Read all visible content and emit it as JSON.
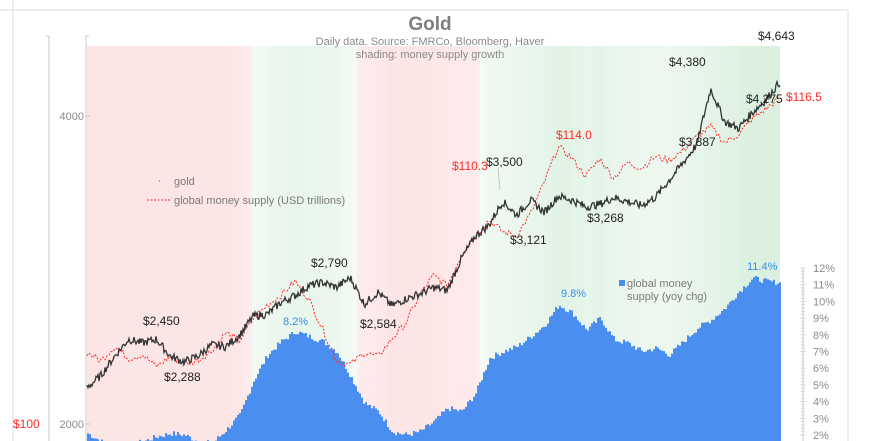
{
  "chart_data": {
    "type": "line",
    "title": "Gold",
    "subtitle_lines": [
      "Daily data.  Source: FMRCo, Bloomberg, Haver",
      "shading: money supply growth"
    ],
    "left_axis": {
      "scale": "log",
      "ticks": [
        {
          "label": "4000",
          "value": 4000
        },
        {
          "label": "2000",
          "value": 2000
        }
      ],
      "ylim": [
        2000,
        4700
      ]
    },
    "money_axis": {
      "ticks": [
        {
          "label": "$100",
          "value": 100
        }
      ],
      "ylim": [
        100,
        119
      ]
    },
    "right_axis": {
      "ticks": [
        "12%",
        "11%",
        "10%",
        "9%",
        "8%",
        "7%",
        "6%",
        "5%",
        "4%",
        "3%",
        "2%"
      ],
      "ylim": [
        1.8,
        12.3
      ],
      "unit": "%"
    },
    "legend": {
      "gold": "gold",
      "money_supply": "global money supply (USD trillions)",
      "money_growth": "global money supply (yoy chg)"
    },
    "series": [
      {
        "name": "gold",
        "color": "#333333",
        "x": [
          0,
          2,
          4,
          6,
          8,
          10,
          12,
          14,
          16,
          18,
          20,
          22,
          24,
          26,
          28,
          30,
          32,
          34,
          36,
          38,
          40,
          42,
          44,
          46,
          48,
          50,
          52,
          54,
          56,
          58,
          60,
          62,
          64,
          66,
          68,
          70,
          72,
          74,
          76,
          78,
          80,
          82,
          84,
          86,
          88,
          90,
          92,
          94,
          96,
          98,
          100
        ],
        "values": [
          2170,
          2230,
          2330,
          2420,
          2400,
          2420,
          2330,
          2300,
          2330,
          2390,
          2380,
          2440,
          2550,
          2560,
          2630,
          2670,
          2730,
          2750,
          2720,
          2780,
          2620,
          2690,
          2610,
          2650,
          2680,
          2720,
          2700,
          2900,
          3050,
          3130,
          3300,
          3200,
          3310,
          3220,
          3340,
          3310,
          3260,
          3280,
          3330,
          3300,
          3270,
          3330,
          3460,
          3600,
          3750,
          4250,
          3950,
          3890,
          4030,
          4150,
          4320
        ]
      },
      {
        "name": "global money supply (USD trillions)",
        "color": "#ff2a2a",
        "x": [
          0,
          2,
          4,
          6,
          8,
          10,
          12,
          14,
          16,
          18,
          20,
          22,
          24,
          26,
          28,
          30,
          32,
          34,
          36,
          38,
          40,
          42,
          44,
          46,
          48,
          50,
          52,
          54,
          56,
          58,
          60,
          62,
          64,
          66,
          68,
          70,
          72,
          74,
          76,
          78,
          80,
          82,
          84,
          86,
          88,
          90,
          92,
          94,
          96,
          98,
          100
        ],
        "values": [
          103.6,
          103.2,
          103.9,
          103.3,
          103.5,
          102.9,
          103.4,
          103.0,
          103.2,
          103.7,
          104.6,
          104.2,
          105.3,
          106.0,
          106.5,
          107.2,
          106.3,
          104.8,
          103.2,
          103.0,
          103.6,
          103.4,
          104.3,
          105.1,
          106.5,
          107.5,
          107.0,
          108.5,
          109.5,
          110.3,
          109.7,
          109.5,
          110.6,
          112.2,
          114.0,
          113.4,
          112.5,
          113.4,
          112.4,
          113.2,
          112.9,
          113.5,
          113.3,
          113.8,
          114.5,
          115.0,
          114.2,
          114.6,
          115.4,
          115.9,
          116.5
        ]
      },
      {
        "name": "global money supply (yoy chg)",
        "color": "#4a8ff0",
        "x": [
          0,
          2,
          4,
          6,
          8,
          10,
          12,
          14,
          16,
          18,
          20,
          22,
          24,
          26,
          28,
          30,
          32,
          34,
          36,
          38,
          40,
          42,
          44,
          46,
          48,
          50,
          52,
          54,
          56,
          58,
          60,
          62,
          64,
          66,
          68,
          70,
          72,
          74,
          76,
          78,
          80,
          82,
          84,
          86,
          88,
          90,
          92,
          94,
          96,
          98,
          100
        ],
        "values": [
          2.1,
          1.6,
          1.3,
          1.4,
          1.6,
          1.9,
          2.1,
          2.0,
          1.6,
          1.5,
          2.3,
          3.2,
          5.3,
          6.8,
          7.6,
          8.2,
          7.9,
          7.6,
          7.0,
          5.5,
          3.9,
          3.4,
          2.2,
          2.0,
          2.2,
          2.8,
          3.6,
          3.4,
          4.5,
          6.6,
          7.0,
          7.3,
          7.9,
          8.6,
          9.8,
          9.3,
          8.3,
          9.0,
          7.7,
          7.5,
          7.0,
          7.2,
          6.8,
          7.6,
          8.4,
          8.9,
          9.6,
          10.6,
          11.4,
          11.2,
          11.1
        ]
      }
    ],
    "annotations": {
      "gold": [
        "$2,450",
        "$2,288",
        "$2,790",
        "$2,584",
        "$3,500",
        "$3,121",
        "$3,268",
        "$4,380",
        "$3,887",
        "$4,643",
        "$4,275"
      ],
      "money": [
        "$110.3",
        "$114.0",
        "$116.5"
      ],
      "growth": [
        "8.2%",
        "9.8%",
        "11.4%"
      ]
    },
    "colors": {
      "gold": "#333333",
      "money": "#ff2a2a",
      "bars": "#4a8ff0",
      "shade_red": "#fde8e8",
      "shade_green": "#e3f3e6"
    }
  }
}
